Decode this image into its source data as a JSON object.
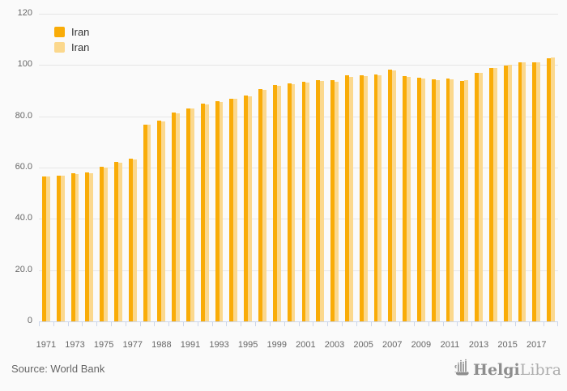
{
  "chart_data": {
    "type": "bar",
    "title": "",
    "xlabel": "",
    "ylabel": "",
    "ymax": 120,
    "ylim": [
      0,
      120
    ],
    "grid": true,
    "legend_position": "top-left",
    "categories": [
      "1971",
      "1972",
      "1973",
      "1974",
      "1975",
      "1976",
      "1977",
      "1978",
      "1988",
      "1990",
      "1991",
      "1992",
      "1993",
      "1994",
      "1995",
      "1996",
      "1999",
      "2000",
      "2001",
      "2002",
      "2003",
      "2004",
      "2005",
      "2006",
      "2007",
      "2008",
      "2009",
      "2010",
      "2011",
      "2012",
      "2013",
      "2014",
      "2015",
      "2016",
      "2017",
      "2018"
    ],
    "x_labels_shown": [
      "1971",
      "1973",
      "1975",
      "1977",
      "1988",
      "1991",
      "1993",
      "1995",
      "1999",
      "2001",
      "2003",
      "2005",
      "2007",
      "2009",
      "2011",
      "2013",
      "2015",
      "2017"
    ],
    "yticks": [
      {
        "value": 0,
        "label": "0"
      },
      {
        "value": 20,
        "label": "20.0"
      },
      {
        "value": 40,
        "label": "40.0"
      },
      {
        "value": 60,
        "label": "60.0"
      },
      {
        "value": 80,
        "label": "80.0"
      },
      {
        "value": 100,
        "label": "100"
      },
      {
        "value": 120,
        "label": "120"
      }
    ],
    "series": [
      {
        "name": "Iran",
        "color": "#F9AC08",
        "values": [
          56.6,
          57.0,
          57.7,
          58.1,
          60.2,
          62.3,
          63.4,
          76.8,
          78.3,
          81.4,
          83.2,
          84.8,
          85.9,
          87.0,
          88.2,
          90.7,
          92.2,
          92.9,
          93.6,
          94.2,
          94.0,
          95.9,
          96.1,
          96.3,
          98.1,
          95.7,
          94.9,
          94.4,
          94.6,
          93.9,
          96.8,
          98.9,
          99.8,
          101.0,
          101.0,
          102.6
        ]
      },
      {
        "name": "Iran",
        "color": "#FBD88D",
        "values": [
          56.4,
          56.8,
          57.5,
          57.9,
          59.9,
          62.0,
          63.1,
          76.6,
          78.0,
          81.1,
          82.9,
          84.5,
          85.6,
          86.7,
          87.9,
          90.4,
          91.9,
          92.6,
          93.2,
          93.8,
          93.6,
          95.5,
          95.7,
          95.9,
          97.8,
          95.4,
          94.6,
          94.1,
          94.3,
          94.1,
          97.0,
          99.0,
          100.0,
          101.2,
          101.2,
          102.8
        ]
      }
    ]
  },
  "legend": {
    "items": [
      {
        "label": "Iran",
        "color": "#F9AC08"
      },
      {
        "label": "Iran",
        "color": "#FBD88D"
      }
    ]
  },
  "footer": {
    "source": "Source: World Bank",
    "logo_helgi": "Helgi",
    "logo_library": "Library."
  },
  "colors": {
    "background": "#fafafa",
    "gridline": "#e6e6e6",
    "axis": "#ccd6eb",
    "axis_text": "#666666",
    "legend_text": "#333333",
    "logo_dark": "#8d8d8d",
    "logo_light": "#aeaeae"
  }
}
